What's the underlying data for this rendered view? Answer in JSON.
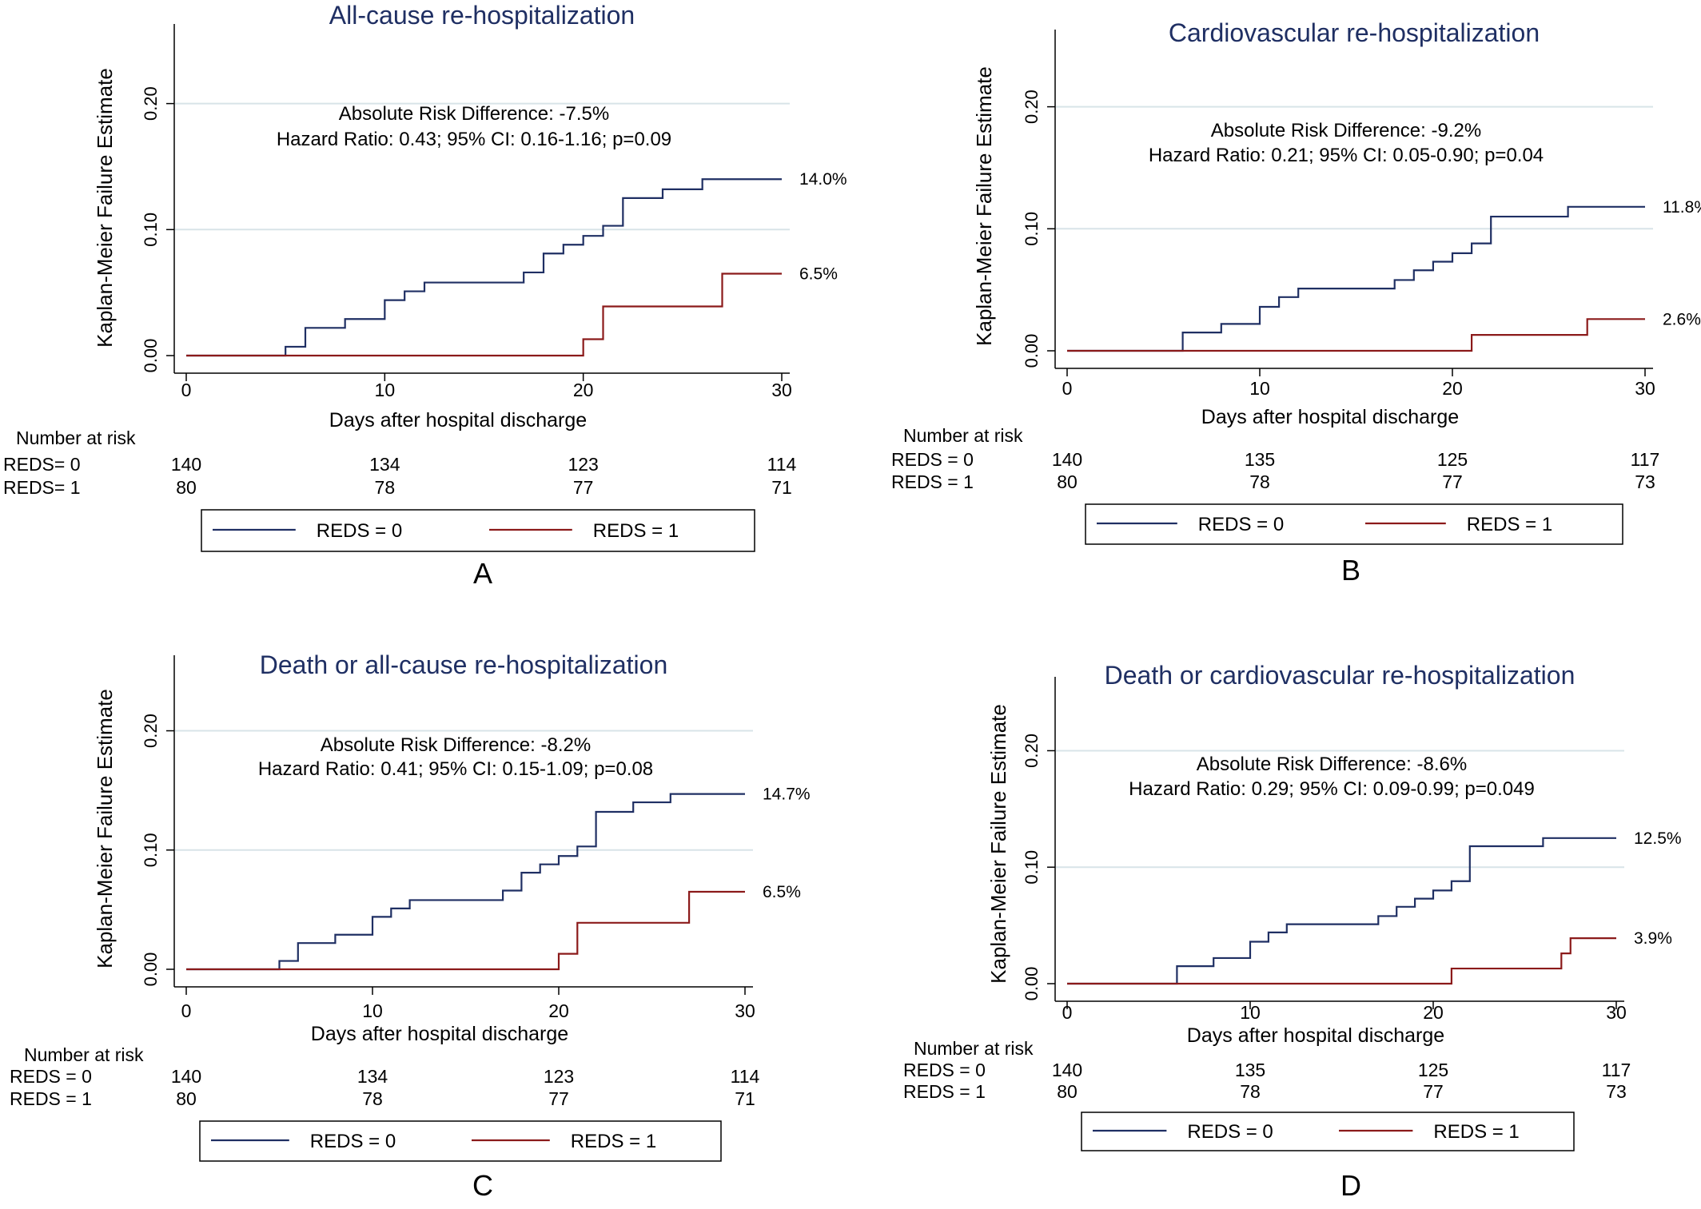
{
  "colors": {
    "reds0": "#1f2f63",
    "reds1": "#8b1a1a",
    "grid": "#d8e4e8",
    "axis": "#000000"
  },
  "chart_data": [
    {
      "panel_letter": "A",
      "type": "line",
      "subtype": "step",
      "title": "All-cause re-hospitalization",
      "xlabel": "Days after hospital discharge",
      "ylabel": "Kaplan-Meier Failure Estimate",
      "xlim": [
        0,
        30
      ],
      "ylim": [
        0,
        0.26
      ],
      "xticks": [
        0,
        10,
        20,
        30
      ],
      "yticks": [
        0,
        0.1,
        0.2
      ],
      "ytick_labels": [
        "0.00",
        "0.10",
        "0.20"
      ],
      "grid": true,
      "annotation": [
        "Absolute Risk Difference: -7.5%",
        "Hazard Ratio: 0.43; 95% CI: 0.16-1.16; p=0.09"
      ],
      "series": [
        {
          "name": "REDS = 0",
          "color": "#1f2f63",
          "end_label": "14.0%",
          "x": [
            0,
            5,
            6,
            8,
            10,
            11,
            12,
            17,
            18,
            19,
            20,
            21,
            22,
            24,
            26,
            30
          ],
          "y": [
            0,
            0.007,
            0.022,
            0.029,
            0.044,
            0.051,
            0.058,
            0.066,
            0.081,
            0.088,
            0.095,
            0.103,
            0.125,
            0.132,
            0.14,
            0.14
          ]
        },
        {
          "name": "REDS = 1",
          "color": "#8b1a1a",
          "end_label": "6.5%",
          "x": [
            0,
            20,
            21,
            27,
            30
          ],
          "y": [
            0,
            0.013,
            0.039,
            0.065,
            0.065
          ]
        }
      ],
      "risk_table": {
        "title": "Number at risk",
        "times": [
          0,
          10,
          20,
          30
        ],
        "rows": [
          {
            "label": "REDS= 0",
            "values": [
              "140",
              "134",
              "123",
              "114"
            ]
          },
          {
            "label": "REDS= 1",
            "values": [
              "80",
              "78",
              "77",
              "71"
            ]
          }
        ]
      }
    },
    {
      "panel_letter": "B",
      "type": "line",
      "subtype": "step",
      "title": "Cardiovascular re-hospitalization",
      "xlabel": "Days after hospital discharge",
      "ylabel": "Kaplan-Meier Failure Estimate",
      "xlim": [
        0,
        30
      ],
      "ylim": [
        0,
        0.26
      ],
      "xticks": [
        0,
        10,
        20,
        30
      ],
      "yticks": [
        0,
        0.1,
        0.2
      ],
      "ytick_labels": [
        "0.00",
        "0.10",
        "0.20"
      ],
      "grid": true,
      "annotation": [
        "Absolute Risk Difference: -9.2%",
        "Hazard Ratio: 0.21; 95% CI: 0.05-0.90; p=0.04"
      ],
      "series": [
        {
          "name": "REDS = 0",
          "color": "#1f2f63",
          "end_label": "11.8%",
          "x": [
            0,
            6,
            8,
            10,
            11,
            12,
            17,
            18,
            19,
            20,
            21,
            22,
            26,
            30
          ],
          "y": [
            0,
            0.015,
            0.022,
            0.036,
            0.044,
            0.051,
            0.058,
            0.066,
            0.073,
            0.08,
            0.088,
            0.11,
            0.118,
            0.118
          ]
        },
        {
          "name": "REDS = 1",
          "color": "#8b1a1a",
          "end_label": "2.6%",
          "x": [
            0,
            21,
            27,
            30
          ],
          "y": [
            0,
            0.013,
            0.026,
            0.026
          ]
        }
      ],
      "risk_table": {
        "title": "Number at risk",
        "times": [
          0,
          10,
          20,
          30
        ],
        "rows": [
          {
            "label": "REDS = 0",
            "values": [
              "140",
              "135",
              "125",
              "117"
            ]
          },
          {
            "label": "REDS = 1",
            "values": [
              "80",
              "78",
              "77",
              "73"
            ]
          }
        ]
      }
    },
    {
      "panel_letter": "C",
      "type": "line",
      "subtype": "step",
      "title": "Death or all-cause re-hospitalization",
      "xlabel": "Days after hospital discharge",
      "ylabel": "Kaplan-Meier Failure Estimate",
      "xlim": [
        0,
        30
      ],
      "ylim": [
        0,
        0.26
      ],
      "xticks": [
        0,
        10,
        20,
        30
      ],
      "yticks": [
        0,
        0.1,
        0.2
      ],
      "ytick_labels": [
        "0.00",
        "0.10",
        "0.20"
      ],
      "grid": true,
      "annotation": [
        "Absolute Risk Difference: -8.2%",
        "Hazard Ratio: 0.41; 95% CI: 0.15-1.09; p=0.08"
      ],
      "series": [
        {
          "name": "REDS = 0",
          "color": "#1f2f63",
          "end_label": "14.7%",
          "x": [
            0,
            5,
            6,
            8,
            10,
            11,
            12,
            17,
            18,
            19,
            20,
            21,
            22,
            24,
            26,
            30
          ],
          "y": [
            0,
            0.007,
            0.022,
            0.029,
            0.044,
            0.051,
            0.058,
            0.066,
            0.081,
            0.088,
            0.095,
            0.103,
            0.132,
            0.14,
            0.147,
            0.147
          ]
        },
        {
          "name": "REDS = 1",
          "color": "#8b1a1a",
          "end_label": "6.5%",
          "x": [
            0,
            20,
            21,
            27,
            30
          ],
          "y": [
            0,
            0.013,
            0.039,
            0.065,
            0.065
          ]
        }
      ],
      "risk_table": {
        "title": "Number at risk",
        "times": [
          0,
          10,
          20,
          30
        ],
        "rows": [
          {
            "label": "REDS = 0",
            "values": [
              "140",
              "134",
              "123",
              "114"
            ]
          },
          {
            "label": "REDS = 1",
            "values": [
              "80",
              "78",
              "77",
              "71"
            ]
          }
        ]
      }
    },
    {
      "panel_letter": "D",
      "type": "line",
      "subtype": "step",
      "title": "Death or cardiovascular re-hospitalization",
      "xlabel": "Days after hospital discharge",
      "ylabel": "Kaplan-Meier Failure Estimate",
      "xlim": [
        0,
        30
      ],
      "ylim": [
        0,
        0.26
      ],
      "xticks": [
        0,
        10,
        20,
        30
      ],
      "yticks": [
        0,
        0.1,
        0.2
      ],
      "ytick_labels": [
        "0.00",
        "0.10",
        "0.20"
      ],
      "grid": true,
      "annotation": [
        "Absolute Risk Difference: -8.6%",
        "Hazard Ratio: 0.29; 95% CI: 0.09-0.99; p=0.049"
      ],
      "series": [
        {
          "name": "REDS = 0",
          "color": "#1f2f63",
          "end_label": "12.5%",
          "x": [
            0,
            6,
            8,
            10,
            11,
            12,
            17,
            18,
            19,
            20,
            21,
            22,
            26,
            30
          ],
          "y": [
            0,
            0.015,
            0.022,
            0.036,
            0.044,
            0.051,
            0.058,
            0.066,
            0.073,
            0.08,
            0.088,
            0.118,
            0.125,
            0.125
          ]
        },
        {
          "name": "REDS = 1",
          "color": "#8b1a1a",
          "end_label": "3.9%",
          "x": [
            0,
            21,
            27,
            27.5,
            30
          ],
          "y": [
            0,
            0.013,
            0.026,
            0.039,
            0.039
          ]
        }
      ],
      "risk_table": {
        "title": "Number at risk",
        "times": [
          0,
          10,
          20,
          30
        ],
        "rows": [
          {
            "label": "REDS = 0",
            "values": [
              "140",
              "135",
              "125",
              "117"
            ]
          },
          {
            "label": "REDS = 1",
            "values": [
              "80",
              "78",
              "77",
              "73"
            ]
          }
        ]
      }
    }
  ]
}
